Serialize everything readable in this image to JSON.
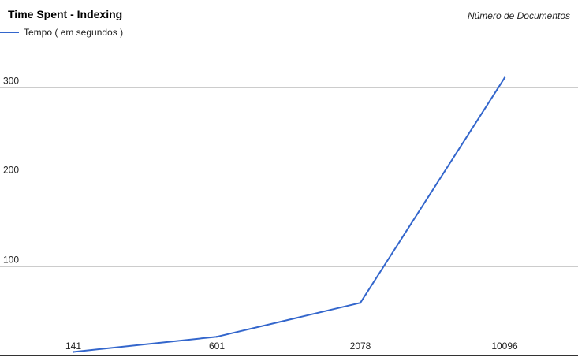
{
  "chart_data": {
    "type": "line",
    "title": "Time Spent - Indexing",
    "subtitle": "Número de Documentos",
    "legend_position": "top-left",
    "grid": true,
    "categories": [
      "141",
      "601",
      "2078",
      "10096"
    ],
    "series": [
      {
        "name": "Tempo ( em segundos )",
        "color": "#3366cc",
        "values": [
          4,
          21,
          59,
          311
        ]
      }
    ],
    "y_ticks": [
      100,
      200,
      300
    ],
    "ylim": [
      0,
      340
    ]
  }
}
